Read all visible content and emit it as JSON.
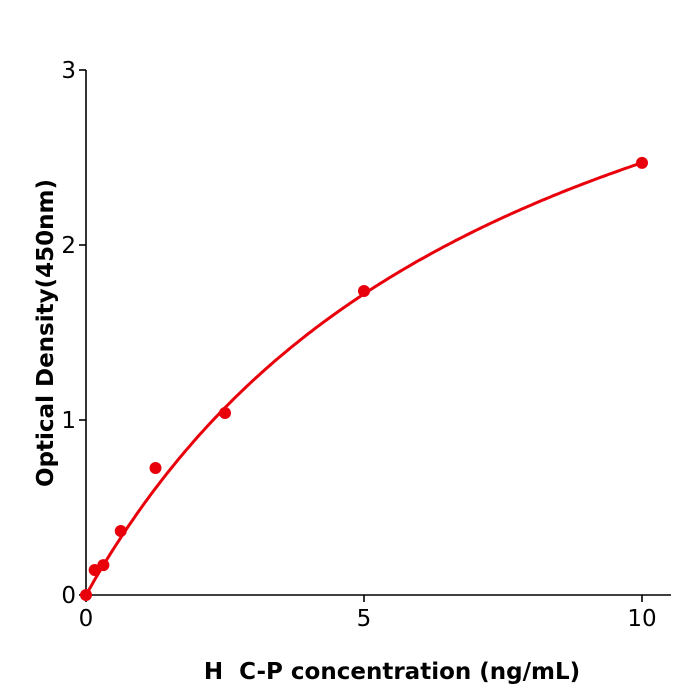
{
  "chart_data": {
    "type": "scatter",
    "title": "",
    "xlabel": "H  C-P concentration (ng/mL)",
    "ylabel": "Optical Density(450nm)",
    "xlim": [
      0,
      10.5
    ],
    "ylim": [
      0,
      3
    ],
    "x_ticks": [
      0,
      5,
      10
    ],
    "y_ticks": [
      0,
      1,
      2,
      3
    ],
    "x_tick_labels": [
      "0",
      "5",
      "10"
    ],
    "y_tick_labels": [
      "0",
      "1",
      "2",
      "3"
    ],
    "grid": false,
    "color": "#e8000b",
    "series": [
      {
        "x": [
          0,
          0.156,
          0.3125,
          0.625,
          1.25,
          2.5,
          5,
          10
        ],
        "y": [
          0.0,
          0.143,
          0.171,
          0.366,
          0.726,
          1.04,
          1.737,
          2.469
        ],
        "fit_curve": true
      }
    ]
  }
}
